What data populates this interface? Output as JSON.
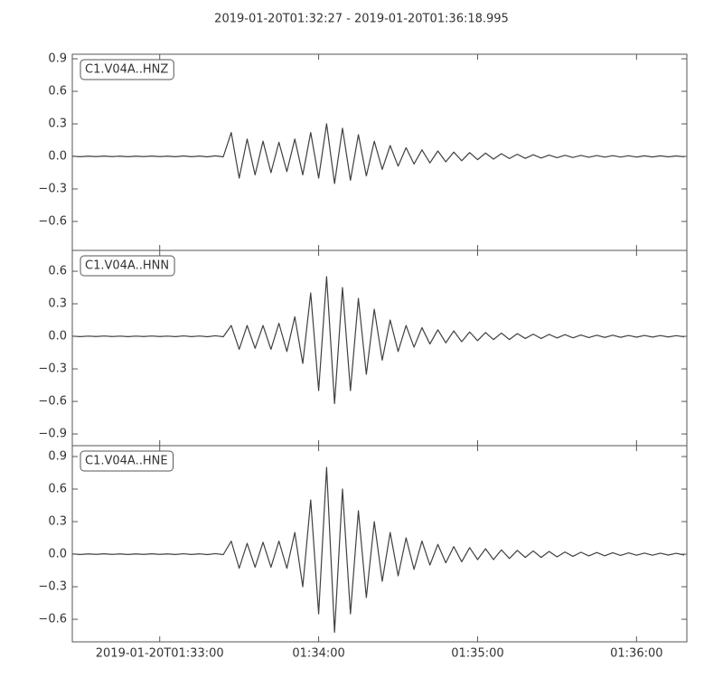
{
  "title": "2019-01-20T01:32:27  -  2019-01-20T01:36:18.995",
  "chart_data": [
    {
      "type": "line",
      "label": "C1.V04A..HNZ",
      "color": "#404040",
      "xlim": [
        0,
        231.995
      ],
      "ylim": [
        -0.867,
        0.942
      ],
      "yticks": [
        {
          "value": -0.6,
          "label": "−0.6"
        },
        {
          "value": -0.3,
          "label": "−0.3"
        },
        {
          "value": 0,
          "label": "0.0"
        },
        0.3,
        0.6,
        0.9
      ],
      "x": [
        0,
        3,
        6,
        9,
        12,
        15,
        18,
        21,
        24,
        27,
        30,
        33,
        36,
        39,
        42,
        45,
        48,
        51,
        54,
        57,
        60,
        63,
        66,
        69,
        72,
        75,
        78,
        81,
        84,
        87,
        90,
        93,
        96,
        99,
        102,
        105,
        108,
        111,
        114,
        117,
        120,
        123,
        126,
        129,
        132,
        135,
        138,
        141,
        144,
        147,
        150,
        153,
        156,
        159,
        162,
        165,
        168,
        171,
        174,
        177,
        180,
        183,
        186,
        189,
        192,
        195,
        198,
        201,
        204,
        207,
        210,
        213,
        216,
        219,
        222,
        225,
        228,
        231
      ],
      "values": [
        0.002,
        -0.003,
        0.002,
        -0.002,
        0.003,
        -0.002,
        0.002,
        -0.003,
        0.002,
        -0.002,
        0.003,
        -0.002,
        0.002,
        -0.003,
        0.004,
        -0.003,
        0.003,
        -0.004,
        0.005,
        -0.004,
        0.22,
        -0.2,
        0.16,
        -0.17,
        0.14,
        -0.15,
        0.13,
        -0.14,
        0.16,
        -0.17,
        0.22,
        -0.2,
        0.3,
        -0.25,
        0.26,
        -0.22,
        0.2,
        -0.18,
        0.14,
        -0.12,
        0.1,
        -0.09,
        0.08,
        -0.07,
        0.06,
        -0.06,
        0.05,
        -0.05,
        0.04,
        -0.04,
        0.035,
        -0.03,
        0.03,
        -0.025,
        0.025,
        -0.02,
        0.02,
        -0.018,
        0.015,
        -0.015,
        0.012,
        -0.012,
        0.01,
        -0.01,
        0.009,
        -0.008,
        0.008,
        -0.007,
        0.007,
        -0.006,
        0.006,
        -0.006,
        0.005,
        -0.005,
        0.005,
        -0.004,
        0.004,
        -0.004
      ]
    },
    {
      "type": "line",
      "label": "C1.V04A..HNN",
      "color": "#404040",
      "xlim": [
        0,
        231.995
      ],
      "ylim": [
        -1.008,
        0.792
      ],
      "yticks": [
        {
          "value": -0.9,
          "label": "−0.9"
        },
        {
          "value": -0.6,
          "label": "−0.6"
        },
        {
          "value": -0.3,
          "label": "−0.3"
        },
        {
          "value": 0,
          "label": "0.0"
        },
        0.3,
        0.6
      ],
      "x": [
        0,
        3,
        6,
        9,
        12,
        15,
        18,
        21,
        24,
        27,
        30,
        33,
        36,
        39,
        42,
        45,
        48,
        51,
        54,
        57,
        60,
        63,
        66,
        69,
        72,
        75,
        78,
        81,
        84,
        87,
        90,
        93,
        96,
        99,
        102,
        105,
        108,
        111,
        114,
        117,
        120,
        123,
        126,
        129,
        132,
        135,
        138,
        141,
        144,
        147,
        150,
        153,
        156,
        159,
        162,
        165,
        168,
        171,
        174,
        177,
        180,
        183,
        186,
        189,
        192,
        195,
        198,
        201,
        204,
        207,
        210,
        213,
        216,
        219,
        222,
        225,
        228,
        231
      ],
      "values": [
        0.002,
        -0.003,
        0.002,
        -0.002,
        0.003,
        -0.002,
        0.002,
        -0.003,
        0.002,
        -0.002,
        0.003,
        -0.002,
        0.002,
        -0.003,
        0.004,
        -0.003,
        0.003,
        -0.004,
        0.005,
        -0.004,
        0.1,
        -0.12,
        0.1,
        -0.11,
        0.1,
        -0.12,
        0.12,
        -0.14,
        0.18,
        -0.25,
        0.4,
        -0.5,
        0.55,
        -0.62,
        0.45,
        -0.5,
        0.35,
        -0.35,
        0.25,
        -0.22,
        0.15,
        -0.14,
        0.1,
        -0.1,
        0.08,
        -0.07,
        0.06,
        -0.06,
        0.05,
        -0.05,
        0.04,
        -0.04,
        0.035,
        -0.03,
        0.03,
        -0.03,
        0.025,
        -0.02,
        0.02,
        -0.02,
        0.018,
        -0.015,
        0.015,
        -0.014,
        0.012,
        -0.012,
        0.01,
        -0.01,
        0.01,
        -0.009,
        0.008,
        -0.008,
        0.008,
        -0.007,
        0.007,
        -0.006,
        0.006,
        -0.005
      ]
    },
    {
      "type": "line",
      "label": "C1.V04A..HNE",
      "color": "#404040",
      "xlim": [
        0,
        231.995
      ],
      "ylim": [
        -0.808,
        1.0
      ],
      "xticks": [
        {
          "value": 33,
          "label": "2019-01-20T01:33:00"
        },
        {
          "value": 93,
          "label": "01:34:00"
        },
        {
          "value": 153,
          "label": "01:35:00"
        },
        {
          "value": 213,
          "label": "01:36:00"
        }
      ],
      "yticks": [
        {
          "value": -0.6,
          "label": "−0.6"
        },
        {
          "value": -0.3,
          "label": "−0.3"
        },
        {
          "value": 0,
          "label": "0.0"
        },
        0.3,
        0.6,
        0.9
      ],
      "x": [
        0,
        3,
        6,
        9,
        12,
        15,
        18,
        21,
        24,
        27,
        30,
        33,
        36,
        39,
        42,
        45,
        48,
        51,
        54,
        57,
        60,
        63,
        66,
        69,
        72,
        75,
        78,
        81,
        84,
        87,
        90,
        93,
        96,
        99,
        102,
        105,
        108,
        111,
        114,
        117,
        120,
        123,
        126,
        129,
        132,
        135,
        138,
        141,
        144,
        147,
        150,
        153,
        156,
        159,
        162,
        165,
        168,
        171,
        174,
        177,
        180,
        183,
        186,
        189,
        192,
        195,
        198,
        201,
        204,
        207,
        210,
        213,
        216,
        219,
        222,
        225,
        228,
        231
      ],
      "values": [
        0.002,
        -0.003,
        0.002,
        -0.002,
        0.003,
        -0.002,
        0.002,
        -0.003,
        0.002,
        -0.002,
        0.003,
        -0.002,
        0.002,
        -0.003,
        0.004,
        -0.003,
        0.003,
        -0.004,
        0.005,
        -0.004,
        0.12,
        -0.13,
        0.1,
        -0.12,
        0.11,
        -0.12,
        0.12,
        -0.13,
        0.2,
        -0.3,
        0.5,
        -0.55,
        0.8,
        -0.72,
        0.6,
        -0.55,
        0.4,
        -0.4,
        0.3,
        -0.25,
        0.2,
        -0.2,
        0.15,
        -0.14,
        0.12,
        -0.1,
        0.09,
        -0.08,
        0.07,
        -0.07,
        0.06,
        -0.05,
        0.05,
        -0.05,
        0.04,
        -0.04,
        0.035,
        -0.03,
        0.03,
        -0.03,
        0.025,
        -0.025,
        0.02,
        -0.02,
        0.018,
        -0.016,
        0.015,
        -0.015,
        0.013,
        -0.012,
        0.012,
        -0.01,
        0.01,
        -0.01,
        0.009,
        -0.008,
        0.008,
        -0.008
      ]
    }
  ]
}
